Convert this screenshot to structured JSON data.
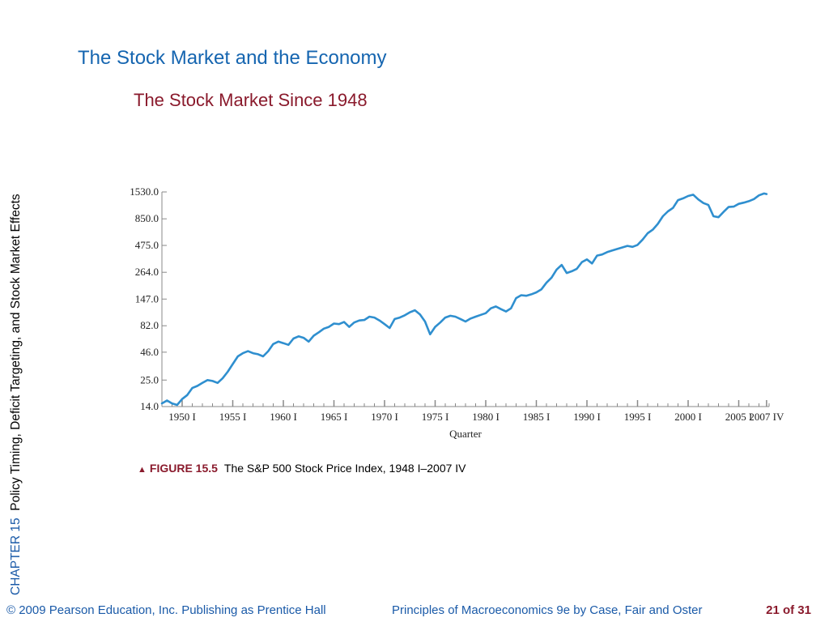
{
  "sidebar": {
    "chapter_label": "CHAPTER 15",
    "chapter_title": "Policy Timing, Deficit Targeting, and Stock Market Effects"
  },
  "header": {
    "title": "The Stock Market and the Economy",
    "subtitle": "The Stock Market Since 1948"
  },
  "caption": {
    "figure_label": "FIGURE 15.5",
    "text": "The S&P 500 Stock Price Index, 1948 I–2007 IV"
  },
  "footer": {
    "copyright": "© 2009 Pearson Education, Inc. Publishing as Prentice Hall",
    "book": "Principles of Macroeconomics 9e by Case, Fair and Oster",
    "page": "21 of 31"
  },
  "colors": {
    "line": "#2f8fcf",
    "axis": "#888888",
    "title": "#1565b0",
    "subtitle": "#8a1a2c"
  },
  "chart_data": {
    "type": "line",
    "title": "The Stock Market Since 1948",
    "xlabel": "Quarter",
    "ylabel": "",
    "y_scale": "log",
    "ylim": [
      14.0,
      1530.0
    ],
    "xlim": [
      1948.0,
      2008.0
    ],
    "y_ticks": [
      {
        "value": 14.0,
        "label": "14.0"
      },
      {
        "value": 25.0,
        "label": "25.0"
      },
      {
        "value": 46.0,
        "label": "46.0"
      },
      {
        "value": 82.0,
        "label": "82.0"
      },
      {
        "value": 147.0,
        "label": "147.0"
      },
      {
        "value": 264.0,
        "label": "264.0"
      },
      {
        "value": 475.0,
        "label": "475.0"
      },
      {
        "value": 850.0,
        "label": "850.0"
      },
      {
        "value": 1530.0,
        "label": "1530.0"
      }
    ],
    "x_ticks": [
      {
        "value": 1950.0,
        "label": "1950 I"
      },
      {
        "value": 1955.0,
        "label": "1955 I"
      },
      {
        "value": 1960.0,
        "label": "1960 I"
      },
      {
        "value": 1965.0,
        "label": "1965 I"
      },
      {
        "value": 1970.0,
        "label": "1970 I"
      },
      {
        "value": 1975.0,
        "label": "1975 I"
      },
      {
        "value": 1980.0,
        "label": "1980 I"
      },
      {
        "value": 1985.0,
        "label": "1985 I"
      },
      {
        "value": 1990.0,
        "label": "1990 I"
      },
      {
        "value": 1995.0,
        "label": "1995 I"
      },
      {
        "value": 2000.0,
        "label": "2000 I"
      },
      {
        "value": 2005.0,
        "label": "2005 I"
      },
      {
        "value": 2007.75,
        "label": "2007 IV"
      }
    ],
    "series": [
      {
        "x": [
          1948.0,
          1948.5,
          1949.0,
          1949.5,
          1950.0,
          1950.5,
          1951.0,
          1951.5,
          1952.0,
          1952.5,
          1953.0,
          1953.5,
          1954.0,
          1954.5,
          1955.0,
          1955.5,
          1956.0,
          1956.5,
          1957.0,
          1957.5,
          1958.0,
          1958.5,
          1959.0,
          1959.5,
          1960.0,
          1960.5,
          1961.0,
          1961.5,
          1962.0,
          1962.5,
          1963.0,
          1963.5,
          1964.0,
          1964.5,
          1965.0,
          1965.5,
          1966.0,
          1966.5,
          1967.0,
          1967.5,
          1968.0,
          1968.5,
          1969.0,
          1969.5,
          1970.0,
          1970.5,
          1971.0,
          1971.5,
          1972.0,
          1972.5,
          1973.0,
          1973.5,
          1974.0,
          1974.5,
          1975.0,
          1975.5,
          1976.0,
          1976.5,
          1977.0,
          1977.5,
          1978.0,
          1978.5,
          1979.0,
          1979.5,
          1980.0,
          1980.5,
          1981.0,
          1981.5,
          1982.0,
          1982.5,
          1983.0,
          1983.5,
          1984.0,
          1984.5,
          1985.0,
          1985.5,
          1986.0,
          1986.5,
          1987.0,
          1987.5,
          1988.0,
          1988.5,
          1989.0,
          1989.5,
          1990.0,
          1990.5,
          1991.0,
          1991.5,
          1992.0,
          1992.5,
          1993.0,
          1993.5,
          1994.0,
          1994.5,
          1995.0,
          1995.5,
          1996.0,
          1996.5,
          1997.0,
          1997.5,
          1998.0,
          1998.5,
          1999.0,
          1999.5,
          2000.0,
          2000.5,
          2001.0,
          2001.5,
          2002.0,
          2002.5,
          2003.0,
          2003.5,
          2004.0,
          2004.5,
          2005.0,
          2005.5,
          2006.0,
          2006.5,
          2007.0,
          2007.5,
          2007.75
        ],
        "y": [
          15,
          16,
          15,
          14.5,
          16.5,
          18,
          21,
          22,
          23.5,
          25,
          24.5,
          23.5,
          26,
          30,
          35.5,
          42,
          45,
          47,
          45,
          44,
          42,
          47,
          55,
          58,
          56,
          54,
          62,
          65,
          63,
          58,
          66,
          71,
          77,
          80,
          86,
          85,
          89,
          80,
          88,
          92,
          93,
          100,
          98,
          92,
          85,
          78,
          95,
          98,
          103,
          110,
          115,
          105,
          90,
          68,
          80,
          88,
          98,
          102,
          100,
          95,
          90,
          96,
          100,
          104,
          108,
          120,
          125,
          118,
          112,
          120,
          150,
          160,
          158,
          163,
          170,
          182,
          210,
          235,
          280,
          310,
          260,
          270,
          285,
          330,
          350,
          320,
          380,
          390,
          410,
          425,
          440,
          455,
          470,
          460,
          480,
          540,
          620,
          670,
          760,
          900,
          1000,
          1080,
          1280,
          1330,
          1400,
          1440,
          1300,
          1200,
          1150,
          900,
          880,
          990,
          1100,
          1110,
          1180,
          1210,
          1250,
          1310,
          1420,
          1480,
          1460
        ]
      }
    ]
  }
}
